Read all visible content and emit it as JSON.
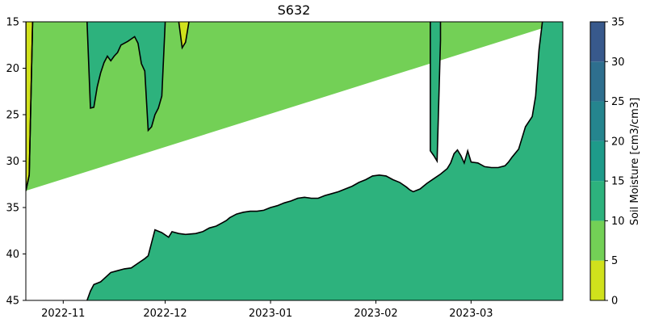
{
  "chart_data": {
    "type": "heatmap",
    "subtype": "filled-contour",
    "title": "S632",
    "xlabel": "",
    "ylabel": "",
    "x_tick_labels": [
      "2022-11",
      "2022-12",
      "2023-01",
      "2023-02",
      "2023-03"
    ],
    "x_tick_dates": [
      "2022-11-01",
      "2022-12-01",
      "2023-01-01",
      "2023-02-01",
      "2023-03-01"
    ],
    "xlim": [
      "2022-10-21",
      "2023-03-28"
    ],
    "ylim": [
      45,
      15
    ],
    "y_inverted": true,
    "y_ticks": [
      15,
      20,
      25,
      30,
      35,
      40,
      45
    ],
    "y_tick_labels": [
      "15",
      "20",
      "25",
      "30",
      "35",
      "40",
      "45"
    ],
    "colorbar": {
      "label": "Soil Moisture [cm3/cm3]",
      "levels": [
        0,
        5,
        10,
        15,
        20,
        25,
        30,
        35
      ],
      "tick_labels": [
        "0",
        "5",
        "10",
        "15",
        "20",
        "25",
        "30",
        "35"
      ],
      "colors": [
        "#d0e11c",
        "#73d056",
        "#2db27d",
        "#1e9b8a",
        "#25858e",
        "#2e6f8e",
        "#38598c",
        "#48196b"
      ]
    },
    "regions": [
      {
        "level_range": [
          5,
          10
        ],
        "color": "#73d056",
        "description": "background band covering upper part of profile",
        "boundary": [
          [
            "2022-10-21",
            33.2
          ],
          [
            "2022-10-22",
            31.5
          ],
          [
            "2022-10-23",
            15
          ],
          [
            "2023-03-28",
            15
          ]
        ]
      },
      {
        "level_range": [
          10,
          15
        ],
        "color": "#2db27d",
        "description": "deep wet band whose upper boundary rises over time",
        "boundary": [
          [
            "2022-11-08",
            45
          ],
          [
            "2022-11-09",
            44.0
          ],
          [
            "2022-11-10",
            43.3
          ],
          [
            "2022-11-12",
            43.0
          ],
          [
            "2022-11-15",
            42.0
          ],
          [
            "2022-11-17",
            41.8
          ],
          [
            "2022-11-19",
            41.6
          ],
          [
            "2022-11-21",
            41.5
          ],
          [
            "2022-11-23",
            41.0
          ],
          [
            "2022-11-25",
            40.5
          ],
          [
            "2022-11-26",
            40.2
          ],
          [
            "2022-11-27",
            38.8
          ],
          [
            "2022-11-28",
            37.4
          ],
          [
            "2022-11-30",
            37.7
          ],
          [
            "2022-12-02",
            38.2
          ],
          [
            "2022-12-03",
            37.6
          ],
          [
            "2022-12-05",
            37.8
          ],
          [
            "2022-12-07",
            37.9
          ],
          [
            "2022-12-10",
            37.8
          ],
          [
            "2022-12-12",
            37.6
          ],
          [
            "2022-12-14",
            37.2
          ],
          [
            "2022-12-16",
            37.0
          ],
          [
            "2022-12-18",
            36.6
          ],
          [
            "2022-12-19",
            36.4
          ],
          [
            "2022-12-20",
            36.1
          ],
          [
            "2022-12-22",
            35.7
          ],
          [
            "2022-12-24",
            35.5
          ],
          [
            "2022-12-26",
            35.4
          ],
          [
            "2022-12-28",
            35.4
          ],
          [
            "2022-12-30",
            35.3
          ],
          [
            "2023-01-01",
            35.0
          ],
          [
            "2023-01-03",
            34.8
          ],
          [
            "2023-01-05",
            34.5
          ],
          [
            "2023-01-07",
            34.3
          ],
          [
            "2023-01-09",
            34.0
          ],
          [
            "2023-01-11",
            33.9
          ],
          [
            "2023-01-13",
            34.0
          ],
          [
            "2023-01-15",
            34.0
          ],
          [
            "2023-01-17",
            33.7
          ],
          [
            "2023-01-19",
            33.5
          ],
          [
            "2023-01-21",
            33.3
          ],
          [
            "2023-01-23",
            33.0
          ],
          [
            "2023-01-25",
            32.7
          ],
          [
            "2023-01-27",
            32.3
          ],
          [
            "2023-01-29",
            32.0
          ],
          [
            "2023-01-31",
            31.6
          ],
          [
            "2023-02-02",
            31.5
          ],
          [
            "2023-02-04",
            31.6
          ],
          [
            "2023-02-06",
            32.0
          ],
          [
            "2023-02-08",
            32.3
          ],
          [
            "2023-02-10",
            32.8
          ],
          [
            "2023-02-11",
            33.1
          ],
          [
            "2023-02-12",
            33.3
          ],
          [
            "2023-02-14",
            33.0
          ],
          [
            "2023-02-16",
            32.4
          ],
          [
            "2023-02-18",
            31.9
          ],
          [
            "2023-02-20",
            31.4
          ],
          [
            "2023-02-22",
            30.8
          ],
          [
            "2023-02-23",
            30.2
          ],
          [
            "2023-02-24",
            29.2
          ],
          [
            "2023-02-25",
            28.8
          ],
          [
            "2023-02-26",
            29.4
          ],
          [
            "2023-02-27",
            30.2
          ],
          [
            "2023-02-28",
            28.9
          ],
          [
            "2023-03-01",
            30.1
          ],
          [
            "2023-03-03",
            30.2
          ],
          [
            "2023-03-05",
            30.6
          ],
          [
            "2023-03-07",
            30.7
          ],
          [
            "2023-03-09",
            30.7
          ],
          [
            "2023-03-11",
            30.5
          ],
          [
            "2023-03-12",
            30.1
          ],
          [
            "2023-03-13",
            29.6
          ],
          [
            "2023-03-15",
            28.7
          ],
          [
            "2023-03-16",
            27.5
          ],
          [
            "2023-03-17",
            26.3
          ],
          [
            "2023-03-19",
            25.2
          ],
          [
            "2023-03-20",
            23.0
          ],
          [
            "2023-03-21",
            18.0
          ],
          [
            "2023-03-22",
            15.0
          ],
          [
            "2023-03-28",
            15.0
          ],
          [
            "2023-03-28",
            45.0
          ]
        ]
      },
      {
        "level_range": [
          10,
          15
        ],
        "color": "#2db27d",
        "description": "shallow wet intrusion in November",
        "boundary": [
          [
            "2022-11-08",
            15
          ],
          [
            "2022-11-09",
            24.3
          ],
          [
            "2022-11-10",
            24.2
          ],
          [
            "2022-11-11",
            22.0
          ],
          [
            "2022-11-12",
            20.5
          ],
          [
            "2022-11-13",
            19.4
          ],
          [
            "2022-11-14",
            18.7
          ],
          [
            "2022-11-15",
            19.2
          ],
          [
            "2022-11-16",
            18.7
          ],
          [
            "2022-11-17",
            18.3
          ],
          [
            "2022-11-18",
            17.5
          ],
          [
            "2022-11-20",
            17.1
          ],
          [
            "2022-11-22",
            16.6
          ],
          [
            "2022-11-23",
            17.3
          ],
          [
            "2022-11-24",
            19.5
          ],
          [
            "2022-11-25",
            20.3
          ],
          [
            "2022-11-26",
            26.7
          ],
          [
            "2022-11-27",
            26.3
          ],
          [
            "2022-11-28",
            25.0
          ],
          [
            "2022-11-29",
            24.3
          ],
          [
            "2022-11-30",
            23.0
          ],
          [
            "2022-12-01",
            15.0
          ]
        ]
      },
      {
        "level_range": [
          10,
          15
        ],
        "color": "#2db27d",
        "description": "narrow wet spike in February",
        "boundary": [
          [
            "2023-02-17",
            15
          ],
          [
            "2023-02-17",
            28.9
          ],
          [
            "2023-02-18",
            29.4
          ],
          [
            "2023-02-19",
            30.0
          ],
          [
            "2023-02-20",
            17.0
          ],
          [
            "2023-02-20",
            15.0
          ]
        ]
      },
      {
        "level_range": [
          0,
          5
        ],
        "color": "#d0e11c",
        "description": "dry sliver at left edge",
        "boundary": [
          [
            "2022-10-21",
            15
          ],
          [
            "2022-10-21",
            33.2
          ],
          [
            "2022-10-22",
            31.5
          ],
          [
            "2022-10-23",
            15
          ]
        ]
      },
      {
        "level_range": [
          0,
          5
        ],
        "color": "#d0e11c",
        "description": "dry wedge near surface in early December",
        "boundary": [
          [
            "2022-12-05",
            15
          ],
          [
            "2022-12-06",
            17.8
          ],
          [
            "2022-12-07",
            17.2
          ],
          [
            "2022-12-08",
            15
          ]
        ]
      }
    ]
  }
}
